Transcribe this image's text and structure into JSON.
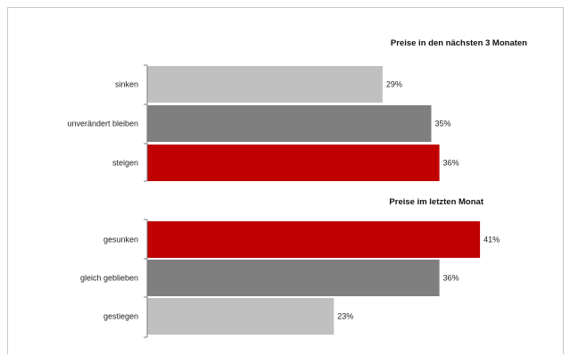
{
  "chart_data": {
    "type": "bar",
    "orientation": "horizontal",
    "value_unit": "%",
    "max_value": 41,
    "groups": [
      {
        "title": "Preise in den nächsten 3 Monaten",
        "bars": [
          {
            "label": "sinken",
            "value": 29,
            "value_label": "29%",
            "color": "#c0c0c0"
          },
          {
            "label": "unverändert bleiben",
            "value": 35,
            "value_label": "35%",
            "color": "#7f7f7f"
          },
          {
            "label": "steigen",
            "value": 36,
            "value_label": "36%",
            "color": "#c00000"
          }
        ]
      },
      {
        "title": "Preise im letzten Monat",
        "bars": [
          {
            "label": "gesunken",
            "value": 41,
            "value_label": "41%",
            "color": "#c00000"
          },
          {
            "label": "gleich geblieben",
            "value": 36,
            "value_label": "36%",
            "color": "#7f7f7f"
          },
          {
            "label": "gestiegen",
            "value": 23,
            "value_label": "23%",
            "color": "#c0c0c0"
          }
        ]
      }
    ]
  }
}
